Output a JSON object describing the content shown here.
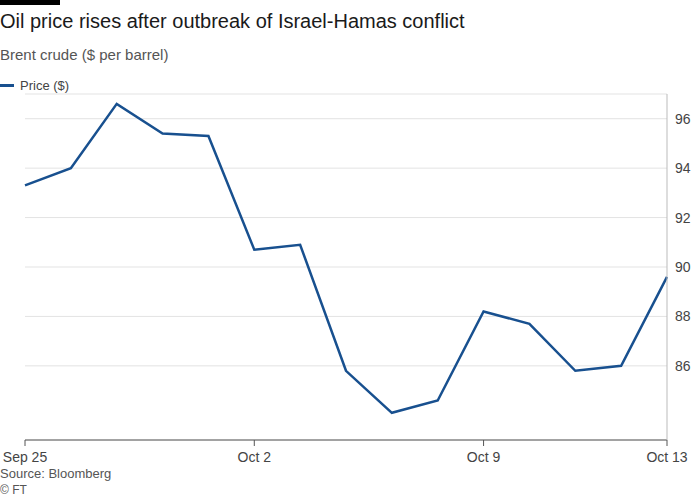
{
  "chart_data": {
    "type": "line",
    "title": "Oil price rises after outbreak of Israel-Hamas conflict",
    "subtitle": "Brent crude ($ per barrel)",
    "source": "Source: Bloomberg",
    "credit": "© FT",
    "categories": [
      "Sep 25",
      null,
      null,
      null,
      null,
      "Oct 2",
      null,
      null,
      null,
      null,
      "Oct 9",
      null,
      null,
      null,
      "Oct 13"
    ],
    "series": [
      {
        "name": "Price ($)",
        "color": "#18508f",
        "values": [
          93.3,
          94.0,
          96.6,
          95.4,
          95.3,
          90.7,
          90.9,
          85.8,
          84.1,
          84.6,
          88.2,
          87.7,
          85.8,
          86.0,
          89.6
        ]
      }
    ],
    "ylim": [
      83,
      97
    ],
    "yticks": [
      86,
      88,
      90,
      92,
      94,
      96
    ],
    "grid": true
  }
}
